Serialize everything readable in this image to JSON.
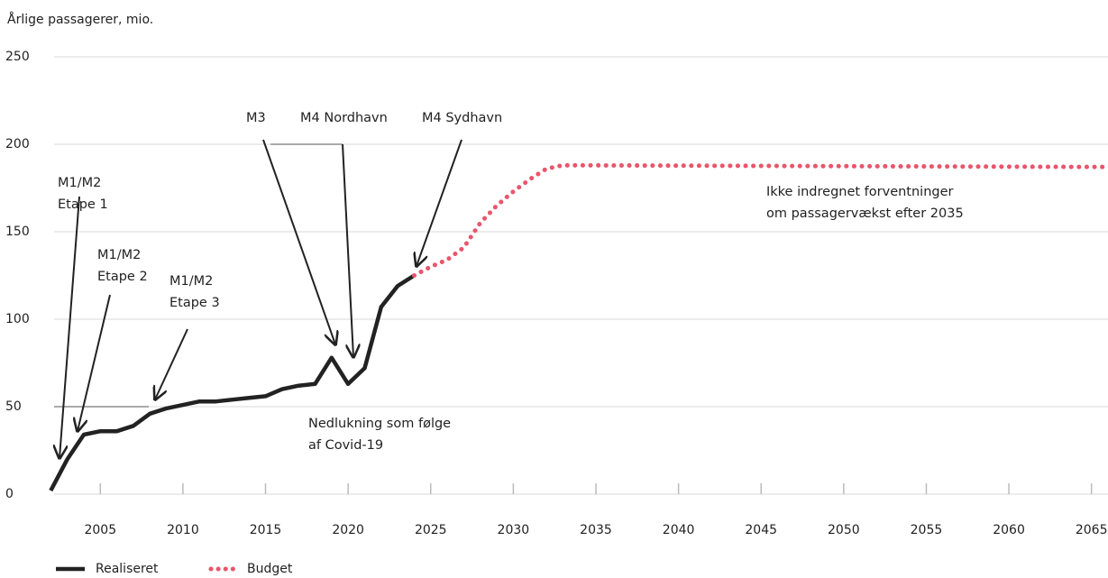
{
  "chart_data": {
    "type": "line",
    "y_axis_label": "Årlige passagerer, mio.",
    "xlim": [
      2002.2,
      2066
    ],
    "xticks": [
      2005,
      2010,
      2015,
      2020,
      2025,
      2030,
      2035,
      2040,
      2045,
      2050,
      2055,
      2060,
      2065
    ],
    "ylim": [
      0,
      250
    ],
    "yticks": [
      0,
      50,
      100,
      150,
      200,
      250
    ],
    "grid": true,
    "legend": "bottom-left",
    "series": [
      {
        "name": "Realiseret",
        "color": "#222222",
        "style": "solid",
        "x": [
          2002,
          2003,
          2004,
          2005,
          2006,
          2007,
          2008,
          2009,
          2010,
          2011,
          2012,
          2013,
          2014,
          2015,
          2016,
          2017,
          2018,
          2019,
          2020,
          2021,
          2022,
          2023,
          2024
        ],
        "values": [
          2,
          20,
          34,
          36,
          36,
          39,
          46,
          49,
          51,
          53,
          53,
          54,
          55,
          56,
          60,
          62,
          63,
          78,
          63,
          72,
          107,
          119,
          125
        ]
      },
      {
        "name": "Budget",
        "color": "#e8566c",
        "style": "dotted",
        "x": [
          2024,
          2025,
          2026,
          2027,
          2028,
          2029,
          2030,
          2031,
          2032,
          2033,
          2066
        ],
        "values": [
          125,
          130,
          134,
          141,
          155,
          165,
          173,
          180,
          186,
          188,
          187
        ]
      }
    ],
    "annotations": [
      {
        "lines": [
          "M1/M2",
          "Etape 1"
        ]
      },
      {
        "lines": [
          "M1/M2",
          "Etape 2"
        ]
      },
      {
        "lines": [
          "M1/M2",
          "Etape 3"
        ]
      },
      {
        "lines": [
          "M3"
        ]
      },
      {
        "lines": [
          "M4 Nordhavn"
        ]
      },
      {
        "lines": [
          "M4 Sydhavn"
        ]
      },
      {
        "lines": [
          "Ikke indregnet forventninger",
          "om passagervækst efter 2035"
        ]
      },
      {
        "lines": [
          "Nedlukning som følge",
          "af Covid-19"
        ]
      }
    ]
  }
}
